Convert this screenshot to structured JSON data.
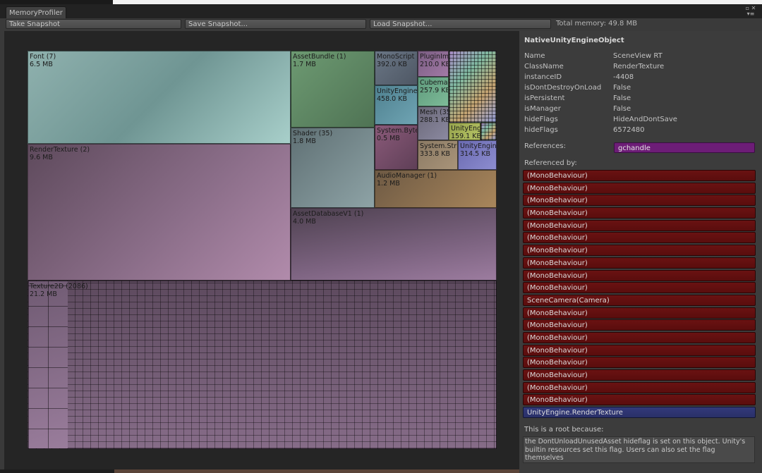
{
  "window": {
    "tab_title": "MemoryProfiler"
  },
  "toolbar": {
    "take_snapshot": "Take Snapshot",
    "save_snapshot": "Save Snapshot...",
    "load_snapshot": "Load Snapshot...",
    "total_memory": "Total memory: 49.8 MB"
  },
  "treemap": {
    "font": {
      "name": "Font (7)",
      "size": "6.5 MB"
    },
    "render_texture": {
      "name": "RenderTexture (2)",
      "size": "9.6 MB"
    },
    "texture2d": {
      "name": "Texture2D (2086)",
      "size": "21.2 MB"
    },
    "asset_bundle": {
      "name": "AssetBundle (1)",
      "size": "1.7 MB"
    },
    "shader": {
      "name": "Shader (35)",
      "size": "1.8 MB"
    },
    "asset_database": {
      "name": "AssetDatabaseV1 (1)",
      "size": "4.0 MB"
    },
    "audio_manager": {
      "name": "AudioManager (1)",
      "size": "1.2 MB"
    },
    "mono_script": {
      "name": "MonoScript",
      "size": "392.0 KB"
    },
    "unity_engine_a": {
      "name": "UnityEngine",
      "size": "458.0 KB"
    },
    "system_byte": {
      "name": "System.Byte",
      "size": "0.5 MB"
    },
    "plugin_importer": {
      "name": "PluginIm",
      "size": "210.0 KB"
    },
    "cubemap": {
      "name": "Cubema",
      "size": "257.9 KB"
    },
    "mesh": {
      "name": "Mesh (35",
      "size": "288.1 KB"
    },
    "unity_engine_b": {
      "name": "UnityEng",
      "size": "159.1 KB"
    },
    "system_string": {
      "name": "System.Str",
      "size": "333.8 KB"
    },
    "unity_engine_c": {
      "name": "UnityEngin",
      "size": "314.5 KB"
    }
  },
  "panel": {
    "title": "NativeUnityEngineObject",
    "props": [
      {
        "key": "Name",
        "value": "SceneView RT"
      },
      {
        "key": "ClassName",
        "value": "RenderTexture"
      },
      {
        "key": "instanceID",
        "value": "-4408"
      },
      {
        "key": "isDontDestroyOnLoad",
        "value": "False"
      },
      {
        "key": "isPersistent",
        "value": "False"
      },
      {
        "key": "isManager",
        "value": "False"
      },
      {
        "key": "hideFlags",
        "value": "HideAndDontSave"
      },
      {
        "key": "hideFlags",
        "value": "6572480"
      }
    ],
    "references_label": "References:",
    "reference_item": "gchandle",
    "referenced_by_label": "Referenced by:",
    "referenced_by": [
      "(MonoBehaviour)",
      "(MonoBehaviour)",
      "(MonoBehaviour)",
      "(MonoBehaviour)",
      "(MonoBehaviour)",
      "(MonoBehaviour)",
      "(MonoBehaviour)",
      "(MonoBehaviour)",
      "(MonoBehaviour)",
      "(MonoBehaviour)",
      "SceneCamera(Camera)",
      "(MonoBehaviour)",
      "(MonoBehaviour)",
      "(MonoBehaviour)",
      "(MonoBehaviour)",
      "(MonoBehaviour)",
      "(MonoBehaviour)",
      "(MonoBehaviour)",
      "(MonoBehaviour)",
      "UnityEngine.RenderTexture"
    ],
    "root_label": "This is a root because:",
    "root_reason": "the DontUnloadUnusedAsset hideflag is set on this object. Unity's builtin resources set this flag. Users can also set the flag themselves"
  },
  "colors": {
    "reference_button": "#6d1d77",
    "referenced_by_button": "#5a0d0d",
    "referenced_by_highlight": "#2a3068"
  }
}
